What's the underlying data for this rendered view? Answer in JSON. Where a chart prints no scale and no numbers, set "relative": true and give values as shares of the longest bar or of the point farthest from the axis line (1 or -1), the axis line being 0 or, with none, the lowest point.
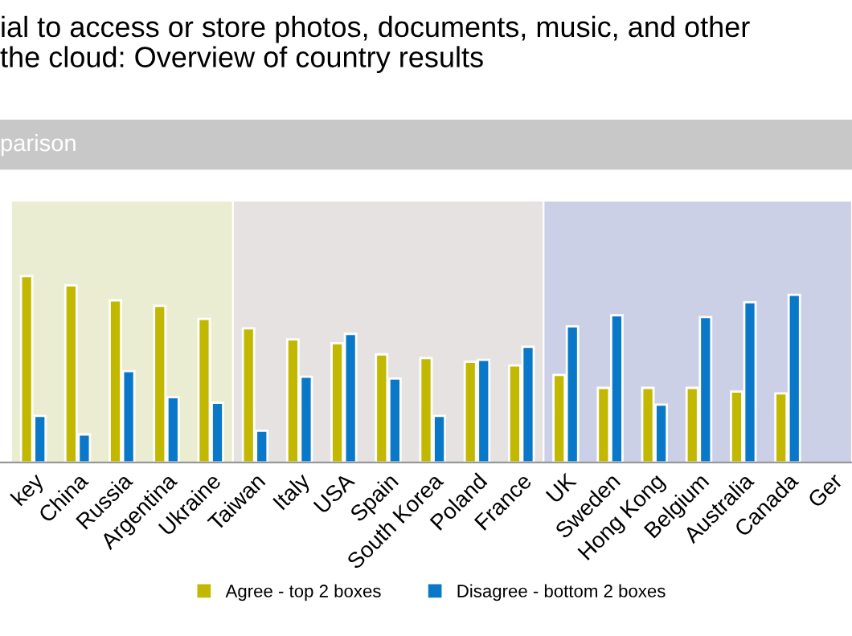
{
  "chart_data": {
    "type": "bar",
    "title": "ial to access or store photos, documents, music, and other\nthe cloud: Overview of country results",
    "subtitle": "parison",
    "relative": true,
    "categories": [
      "key",
      "China",
      "Russia",
      "Argentina",
      "Ukraine",
      "Taiwan",
      "Italy",
      "USA",
      "Spain",
      "South Korea",
      "Poland",
      "France",
      "UK",
      "Sweden",
      "Hong Kong",
      "Belgium",
      "Australia",
      "Canada",
      "Ger"
    ],
    "series": [
      {
        "name": "Agree - top 2 boxes",
        "color": "#c3b800",
        "values": [
          1,
          0.95,
          0.87,
          0.84,
          0.77,
          0.72,
          0.66,
          0.64,
          0.58,
          0.56,
          0.54,
          0.52,
          0.47,
          0.4,
          0.4,
          0.4,
          0.38,
          0.37,
          null
        ]
      },
      {
        "name": "Disagree - bottom 2 boxes",
        "color": "#0a78c8",
        "values": [
          0.25,
          0.15,
          0.49,
          0.35,
          0.32,
          0.17,
          0.46,
          0.69,
          0.45,
          0.25,
          0.55,
          0.62,
          0.73,
          0.79,
          0.31,
          0.78,
          0.86,
          0.9,
          null
        ]
      }
    ],
    "bands": [
      {
        "axis": "x",
        "from": "key",
        "to": "Ukraine",
        "color": "#ebedd3"
      },
      {
        "axis": "x",
        "from": "Taiwan",
        "to": "France",
        "color": "#e6e2e2"
      },
      {
        "axis": "x",
        "from": "UK",
        "to": "Ger",
        "color": "#cbd0e6"
      }
    ],
    "legend": "bottom",
    "grid": false
  }
}
